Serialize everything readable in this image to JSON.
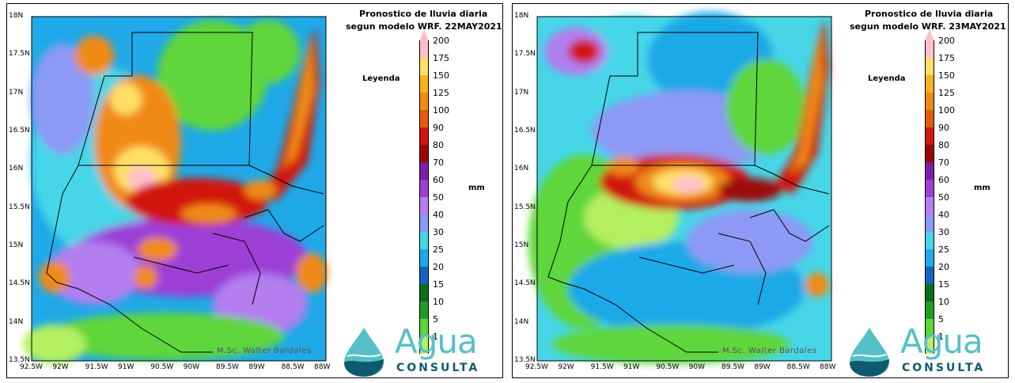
{
  "colorbar": {
    "labels": [
      "200",
      "175",
      "150",
      "125",
      "100",
      "90",
      "80",
      "70",
      "60",
      "50",
      "40",
      "30",
      "25",
      "20",
      "15",
      "10",
      "5",
      "1"
    ],
    "colors": [
      "#ffc0cb",
      "#ffe066",
      "#f7b21c",
      "#f08a16",
      "#e65c0a",
      "#d1160f",
      "#9b0707",
      "#7b1fa2",
      "#9c3fd6",
      "#b27ef0",
      "#8c99f5",
      "#46d6e8",
      "#1fa9e8",
      "#1565c0",
      "#0f6b1e",
      "#1f9b28",
      "#5fd63a",
      "#b4f060"
    ],
    "legend_word": "Leyenda",
    "unit": "mm"
  },
  "axes": {
    "y_ticks": [
      "18N",
      "17.5N",
      "17N",
      "16.5N",
      "16N",
      "15.5N",
      "15N",
      "14.5N",
      "14N",
      "13.5N"
    ],
    "x_ticks": [
      "92.5W",
      "92W",
      "91.5W",
      "91W",
      "90.5W",
      "90W",
      "89.5W",
      "89W",
      "88.5W",
      "88W"
    ],
    "lon_range": [
      -92.5,
      -88
    ],
    "lat_range": [
      13.5,
      18
    ]
  },
  "panels": [
    {
      "title_line1": "Pronostico de lluvia diaria",
      "title_line2": "segun modelo WRF.  22MAY2021",
      "credit": "M.Sc. Walter Bardales",
      "date": "22MAY2021"
    },
    {
      "title_line1": "Pronostico de lluvia diaria",
      "title_line2": "segun modelo WRF.  23MAY2021",
      "credit": "M.Sc. Walter Bardales",
      "date": "23MAY2021"
    }
  ],
  "logo": {
    "word": "Agua",
    "sub": "CONSULTA",
    "colors": {
      "light": "#57c0c7",
      "dark": "#0f5a6e"
    }
  }
}
